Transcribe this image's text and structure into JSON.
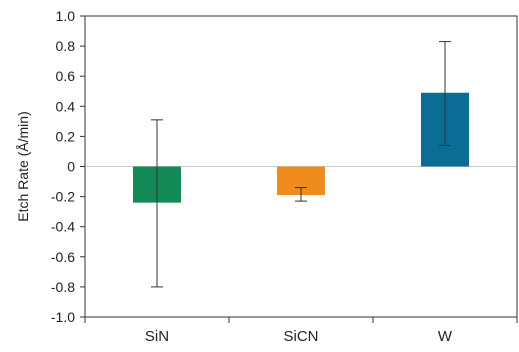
{
  "chart_data": {
    "type": "bar",
    "categories": [
      "SiN",
      "SiCN",
      "W"
    ],
    "values": [
      -0.24,
      -0.19,
      0.49
    ],
    "error_bars": [
      {
        "low": -0.8,
        "high": 0.31
      },
      {
        "low": -0.23,
        "high": -0.14
      },
      {
        "low": 0.14,
        "high": 0.83
      }
    ],
    "colors": [
      "#138a57",
      "#ef8b1f",
      "#0b6d96"
    ],
    "title": "",
    "xlabel": "",
    "ylabel": "Etch Rate (Å/min)",
    "ylim": [
      -1.0,
      1.0
    ],
    "yticks": [
      "1.0",
      "0.8",
      "0.6",
      "0.4",
      "0.2",
      "0",
      "-0.2",
      "-0.4",
      "-0.6",
      "-0.8",
      "-1.0"
    ],
    "ytick_values": [
      1.0,
      0.8,
      0.6,
      0.4,
      0.2,
      0,
      -0.2,
      -0.4,
      -0.6,
      -0.8,
      -1.0
    ],
    "grid": false,
    "legend": "none"
  }
}
